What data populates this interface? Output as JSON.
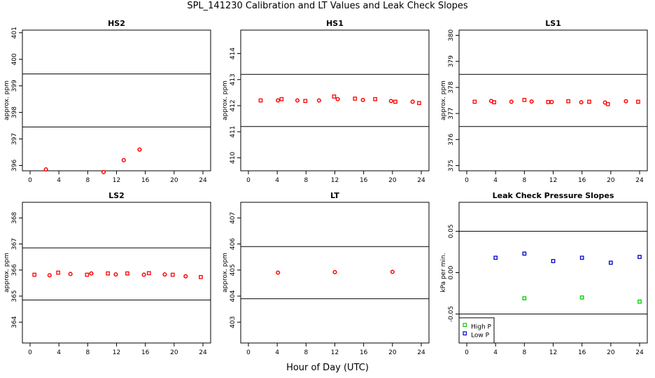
{
  "title": "SPL_141230  Calibration and LT Values and Leak Check Slopes",
  "xlabel": "Hour of Day (UTC)",
  "chart_data": [
    {
      "type": "scatter",
      "title": "HS2",
      "ylabel": "approx. ppm",
      "xlim": [
        0,
        24
      ],
      "ylim": [
        395.8,
        401.1
      ],
      "xticks": [
        0,
        4,
        8,
        12,
        16,
        20,
        24
      ],
      "yticks": [
        396,
        397,
        398,
        399,
        400,
        401
      ],
      "hlines": [
        397.45,
        399.45
      ],
      "grid": false,
      "series": [
        {
          "color": "#ff0000",
          "marker": "circle",
          "x": [
            2.2,
            10.2,
            13.0,
            15.2
          ],
          "y": [
            395.85,
            395.75,
            396.2,
            396.6
          ]
        }
      ]
    },
    {
      "type": "scatter",
      "title": "HS1",
      "ylabel": "approx. ppm",
      "xlim": [
        0,
        24
      ],
      "ylim": [
        409.5,
        414.9
      ],
      "xticks": [
        0,
        4,
        8,
        12,
        16,
        20,
        24
      ],
      "yticks": [
        410,
        411,
        412,
        413,
        414
      ],
      "hlines": [
        411.2,
        413.2
      ],
      "grid": false,
      "series": [
        {
          "color": "#ff0000",
          "marker": "mixed",
          "x": [
            1.7,
            4.1,
            4.6,
            6.8,
            7.9,
            9.8,
            11.9,
            12.4,
            14.8,
            15.9,
            17.6,
            19.8,
            20.4,
            22.8,
            23.7
          ],
          "y": [
            412.2,
            412.2,
            412.25,
            412.2,
            412.18,
            412.2,
            412.35,
            412.25,
            412.27,
            412.22,
            412.25,
            412.18,
            412.15,
            412.15,
            412.1
          ]
        }
      ]
    },
    {
      "type": "scatter",
      "title": "LS1",
      "ylabel": "approx. ppm",
      "xlim": [
        0,
        24
      ],
      "ylim": [
        374.8,
        380.2
      ],
      "xticks": [
        0,
        4,
        8,
        12,
        16,
        20,
        24
      ],
      "yticks": [
        375,
        376,
        377,
        378,
        379,
        380
      ],
      "hlines": [
        376.5,
        378.5
      ],
      "grid": false,
      "series": [
        {
          "color": "#ff0000",
          "marker": "mixed",
          "x": [
            1.1,
            3.4,
            3.8,
            6.2,
            8.0,
            9.0,
            11.3,
            11.8,
            14.1,
            15.9,
            17.0,
            19.2,
            19.6,
            22.1,
            23.8
          ],
          "y": [
            377.45,
            377.48,
            377.43,
            377.45,
            377.52,
            377.46,
            377.44,
            377.44,
            377.47,
            377.43,
            377.45,
            377.42,
            377.36,
            377.47,
            377.45
          ]
        }
      ]
    },
    {
      "type": "scatter",
      "title": "LS2",
      "ylabel": "approx. ppm",
      "xlim": [
        0,
        24
      ],
      "ylim": [
        363.2,
        368.6
      ],
      "xticks": [
        0,
        4,
        8,
        12,
        16,
        20,
        24
      ],
      "yticks": [
        364,
        365,
        366,
        367,
        368
      ],
      "hlines": [
        364.85,
        366.85
      ],
      "grid": false,
      "series": [
        {
          "color": "#ff0000",
          "marker": "mixed",
          "x": [
            0.6,
            2.7,
            3.9,
            5.6,
            7.9,
            8.5,
            10.8,
            11.9,
            13.5,
            15.8,
            16.5,
            18.7,
            19.8,
            21.6,
            23.7
          ],
          "y": [
            365.82,
            365.8,
            365.9,
            365.85,
            365.82,
            365.87,
            365.87,
            365.83,
            365.87,
            365.82,
            365.88,
            365.83,
            365.82,
            365.76,
            365.73
          ]
        }
      ]
    },
    {
      "type": "scatter",
      "title": "LT",
      "ylabel": "approx. ppm",
      "xlim": [
        0,
        24
      ],
      "ylim": [
        402.2,
        407.6
      ],
      "xticks": [
        0,
        4,
        8,
        12,
        16,
        20,
        24
      ],
      "yticks": [
        403,
        404,
        405,
        406,
        407
      ],
      "hlines": [
        403.9,
        405.9
      ],
      "grid": false,
      "series": [
        {
          "color": "#ff0000",
          "marker": "circle",
          "x": [
            4.1,
            12.0,
            20.0
          ],
          "y": [
            404.9,
            404.92,
            404.93
          ]
        }
      ]
    },
    {
      "type": "scatter",
      "title": "Leak Check Pressure Slopes",
      "ylabel": "kPa per min.",
      "xlim": [
        0,
        24
      ],
      "ylim": [
        -0.085,
        0.085
      ],
      "xticks": [
        0,
        4,
        8,
        12,
        16,
        20,
        24
      ],
      "yticks": [
        -0.05,
        0.0,
        0.05
      ],
      "ytick_labels": [
        "-0.05",
        "0.00",
        "0.05"
      ],
      "hlines": [
        -0.05,
        0.05
      ],
      "grid": false,
      "legend_position": "bottom-left",
      "series": [
        {
          "name": "High P",
          "color": "#00cc00",
          "marker": "square",
          "x": [
            8.0,
            16.0,
            24.0
          ],
          "y": [
            -0.031,
            -0.03,
            -0.035
          ]
        },
        {
          "name": "Low P",
          "color": "#0000cc",
          "marker": "square",
          "x": [
            4.0,
            8.0,
            12.0,
            16.0,
            20.0,
            24.0
          ],
          "y": [
            0.018,
            0.023,
            0.014,
            0.018,
            0.012,
            0.019
          ]
        }
      ]
    }
  ]
}
